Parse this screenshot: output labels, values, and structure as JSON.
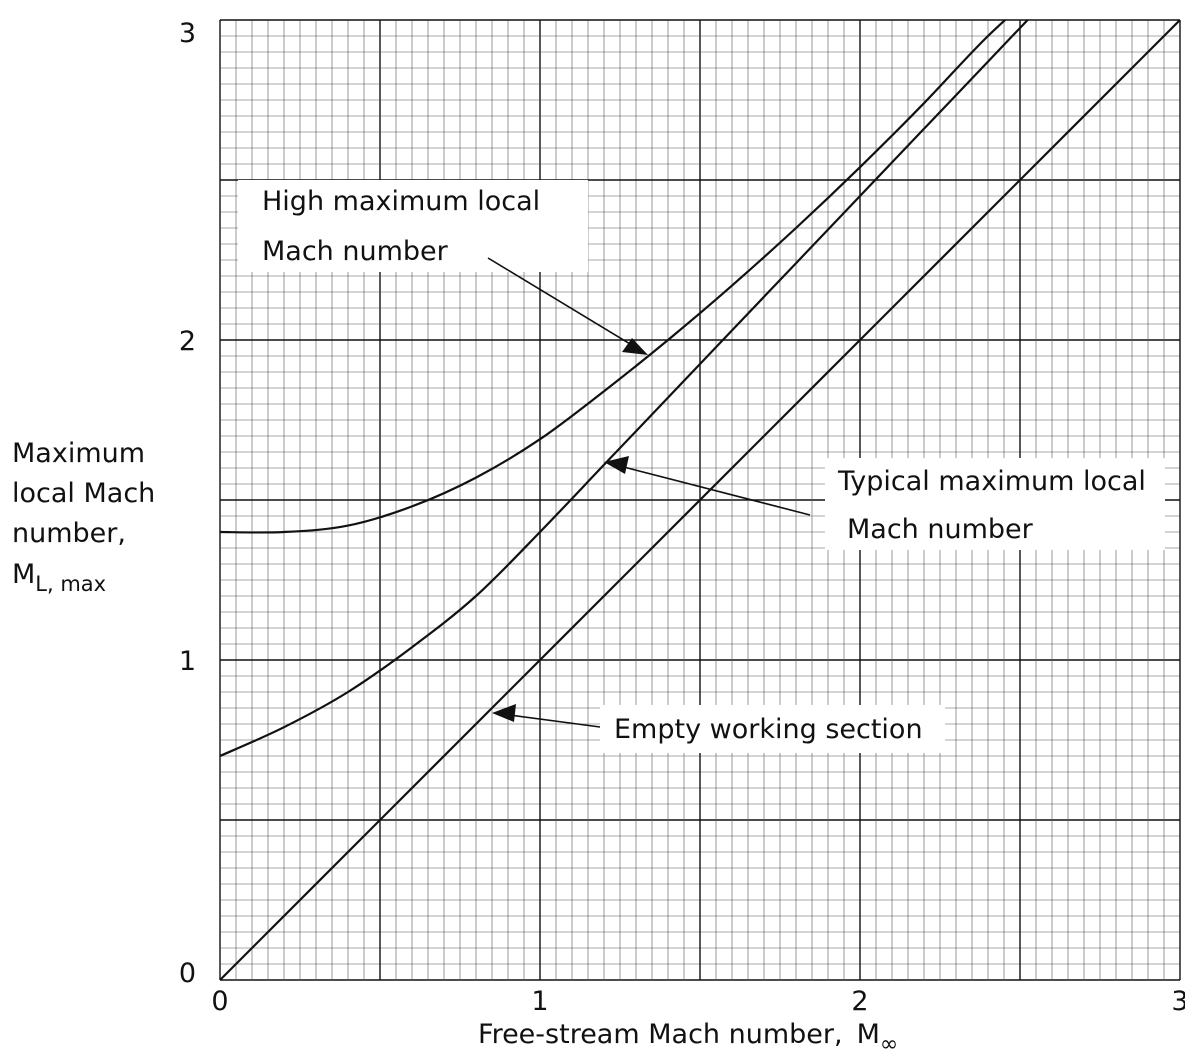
{
  "chart_data": {
    "type": "line",
    "xlabel_main": "Free-stream Mach number,",
    "xlabel_symbol": "M",
    "xlabel_sub": "∞",
    "ylabel_lines": [
      "Maximum",
      "local Mach",
      "number,"
    ],
    "ylabel_symbol": "M",
    "ylabel_sub": "L, max",
    "xlim": [
      0,
      3
    ],
    "ylim": [
      0,
      3
    ],
    "xticks": [
      "0",
      "1",
      "2",
      "3"
    ],
    "yticks": [
      "0",
      "1",
      "2",
      "3"
    ],
    "grid": true,
    "series": [
      {
        "label_lines": [
          "High maximum local",
          "Mach number"
        ],
        "x": [
          0,
          0.2,
          0.4,
          0.6,
          0.8,
          1.0,
          1.2,
          1.4,
          1.6,
          1.8,
          2.0,
          2.2,
          2.4,
          2.6
        ],
        "y": [
          1.4,
          1.4,
          1.42,
          1.48,
          1.57,
          1.69,
          1.84,
          2.0,
          2.17,
          2.35,
          2.54,
          2.74,
          2.95,
          3.13
        ]
      },
      {
        "label_lines": [
          "Typical maximum local",
          "Mach number"
        ],
        "x": [
          0,
          0.2,
          0.4,
          0.6,
          0.8,
          1.0,
          1.2,
          1.4,
          1.6,
          1.8,
          2.0,
          2.2,
          2.4,
          2.6
        ],
        "y": [
          0.7,
          0.79,
          0.9,
          1.04,
          1.2,
          1.4,
          1.61,
          1.82,
          2.03,
          2.24,
          2.45,
          2.66,
          2.87,
          3.08
        ]
      },
      {
        "label_lines": [
          "Empty working section"
        ],
        "x": [
          0,
          3
        ],
        "y": [
          0,
          3
        ]
      }
    ]
  }
}
